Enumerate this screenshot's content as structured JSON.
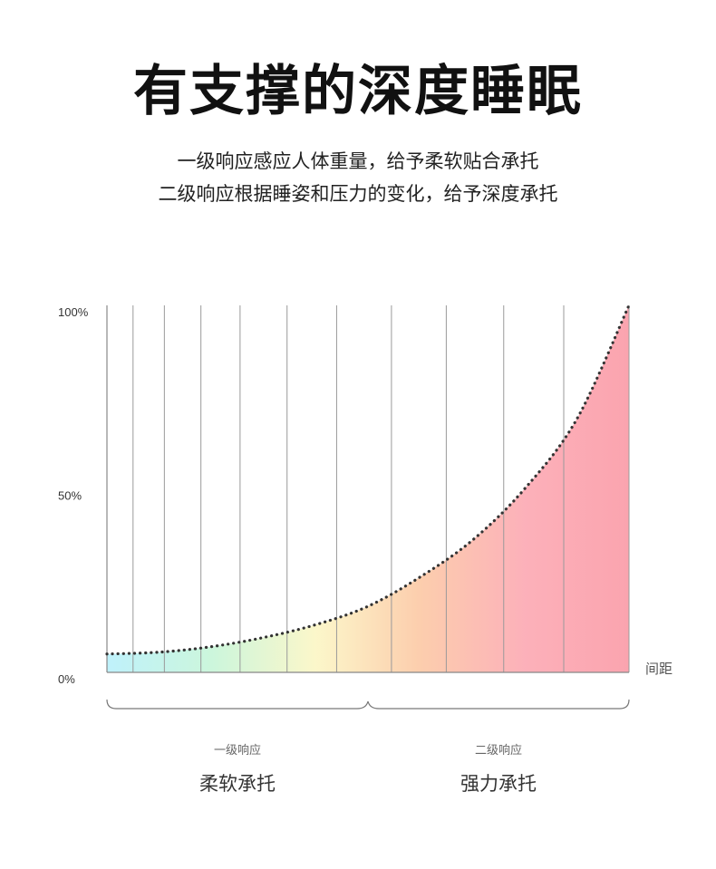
{
  "header": {
    "title": "有支撑的深度睡眠",
    "subtitle_lines": [
      "一级响应感应人体重量，给予柔软贴合承托",
      "二级响应根据睡姿和压力的变化，给予深度承托"
    ]
  },
  "chart_data": {
    "type": "area",
    "xlabel": "间距",
    "ylabel": "",
    "y_ticks": [
      "100%",
      "50%",
      "0%"
    ],
    "ylim": [
      0,
      100
    ],
    "xlim": [
      0,
      1
    ],
    "grid": "vertical",
    "x_gridlines": [
      0.05,
      0.11,
      0.18,
      0.255,
      0.345,
      0.44,
      0.545,
      0.65,
      0.76,
      0.875,
      1.0
    ],
    "series": [
      {
        "values": [
          {
            "x": 0.0,
            "y": 5
          },
          {
            "x": 0.1,
            "y": 5.5
          },
          {
            "x": 0.2,
            "y": 7
          },
          {
            "x": 0.3,
            "y": 9.5
          },
          {
            "x": 0.4,
            "y": 13
          },
          {
            "x": 0.5,
            "y": 18
          },
          {
            "x": 0.6,
            "y": 26
          },
          {
            "x": 0.7,
            "y": 36
          },
          {
            "x": 0.8,
            "y": 50
          },
          {
            "x": 0.9,
            "y": 69
          },
          {
            "x": 1.0,
            "y": 100
          }
        ]
      }
    ],
    "gradient_colors": [
      "#b8f0fb",
      "#c6f5d8",
      "#fbf6c4",
      "#fcc8a4",
      "#fca8b2",
      "#fa9aa6"
    ],
    "groups": [
      {
        "level": "一级响应",
        "label": "柔软承托",
        "range": [
          0,
          0.5
        ]
      },
      {
        "level": "二级响应",
        "label": "强力承托",
        "range": [
          0.5,
          1.0
        ]
      }
    ]
  }
}
